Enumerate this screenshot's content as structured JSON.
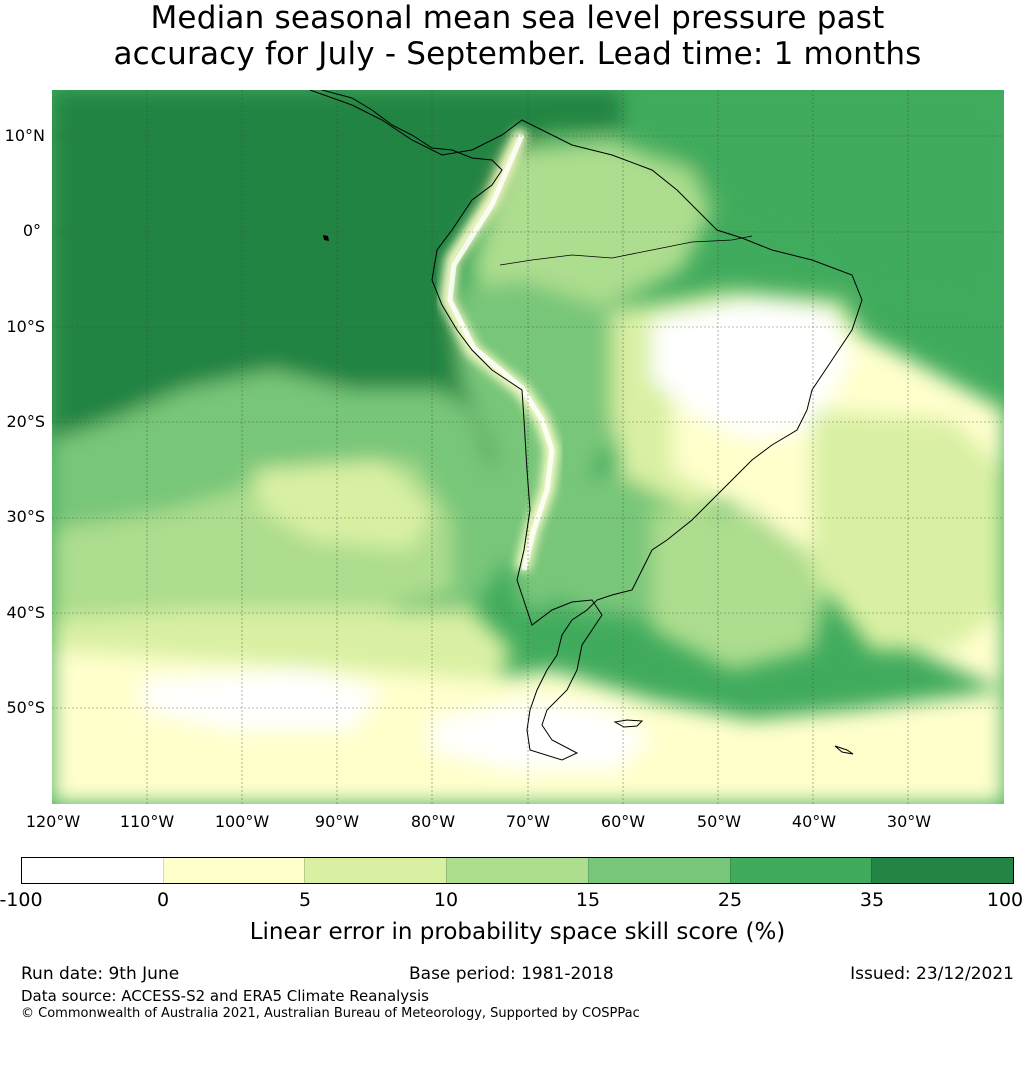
{
  "title": {
    "line1": "Median seasonal mean sea level pressure past",
    "line2": "accuracy for July - September. Lead time: 1 months"
  },
  "map": {
    "lat_labels": [
      "10°N",
      "0°",
      "10°S",
      "20°S",
      "30°S",
      "40°S",
      "50°S"
    ],
    "lon_labels": [
      "120°W",
      "110°W",
      "100°W",
      "90°W",
      "80°W",
      "70°W",
      "60°W",
      "50°W",
      "40°W",
      "30°W"
    ],
    "colors": {
      "background": "#ffffff",
      "coastline": "#000000",
      "gridline": "#444444"
    }
  },
  "colorbar": {
    "ticks": [
      "-100",
      "0",
      "5",
      "10",
      "15",
      "25",
      "35",
      "100"
    ],
    "colors": [
      "#ffffff",
      "#ffffcc",
      "#d9f0a3",
      "#addd8e",
      "#78c679",
      "#41ab5d",
      "#238443"
    ],
    "label": "Linear error in probability space skill score (%)"
  },
  "footer": {
    "run_date": "Run date: 9th June",
    "base_period": "Base period: 1981-2018",
    "issued": "Issued: 23/12/2021",
    "data_source": "Data source: ACCESS-S2 and ERA5 Climate Reanalysis",
    "copyright": "© Commonwealth of Australia 2021, Australian Bureau of Meteorology, Supported by COSPPac"
  }
}
